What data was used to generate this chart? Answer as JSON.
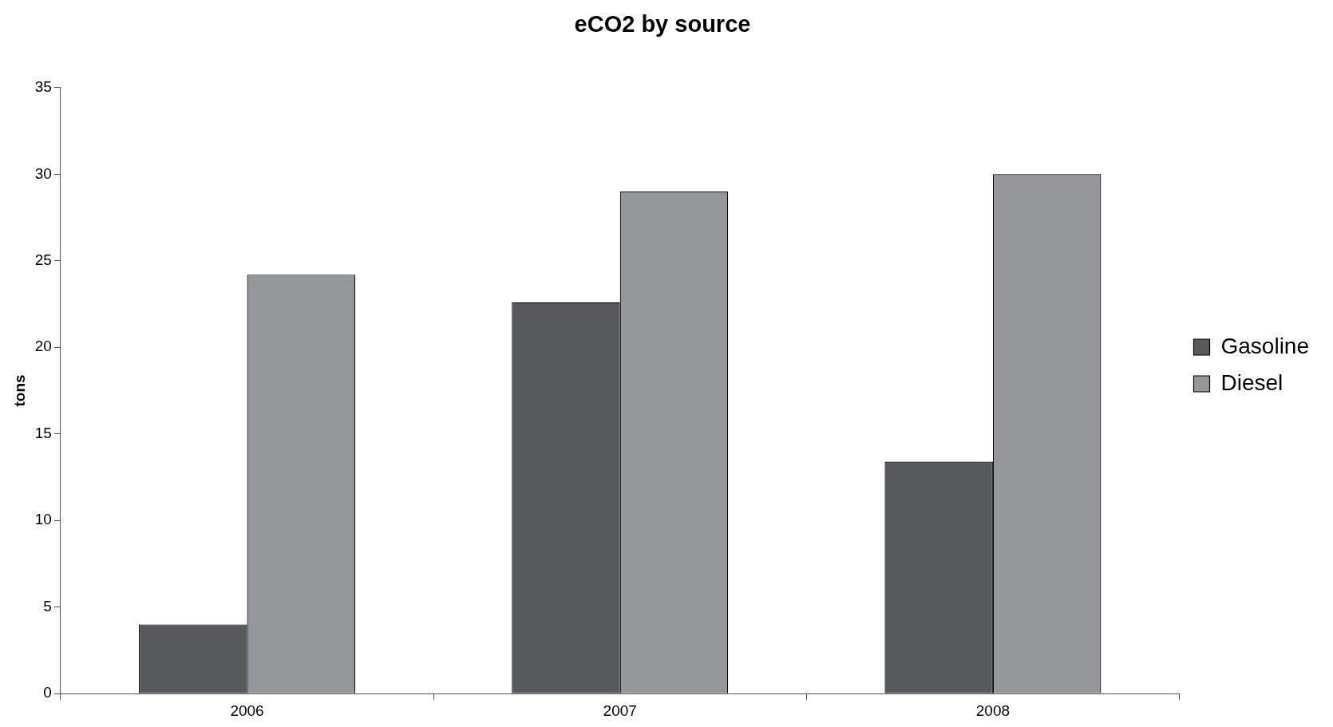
{
  "chart_data": {
    "type": "bar",
    "title": "eCO2 by source",
    "ylabel": "tons",
    "categories": [
      "2006",
      "2007",
      "2008"
    ],
    "series": [
      {
        "name": "Gasoline",
        "color": "#58595b",
        "values": [
          4.0,
          22.6,
          13.4
        ]
      },
      {
        "name": "Diesel",
        "color": "#96979b",
        "values": [
          24.2,
          29.0,
          30.0
        ]
      }
    ],
    "ylim": [
      0,
      35
    ],
    "yticks": [
      0,
      5,
      10,
      15,
      20,
      25,
      30,
      35
    ],
    "grid": false,
    "legend": "right"
  }
}
